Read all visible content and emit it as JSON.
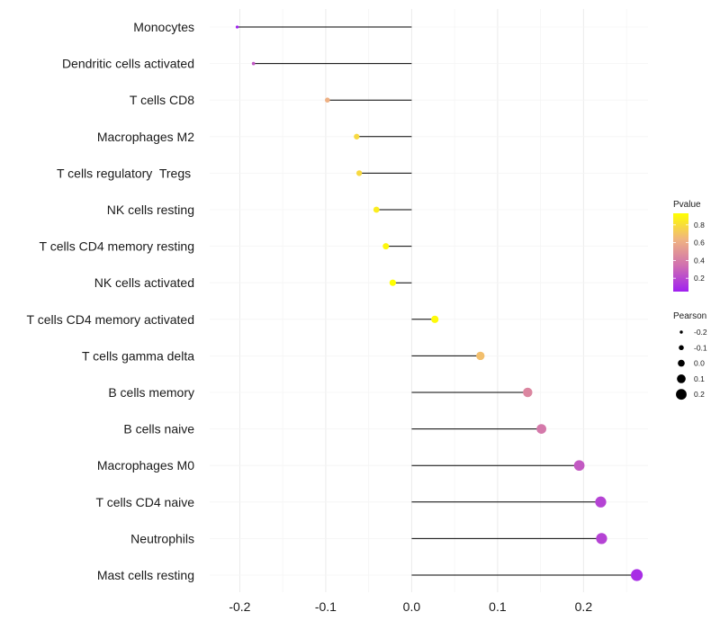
{
  "chart_data": {
    "type": "lollipop",
    "categories": [
      "Monocytes",
      "Dendritic cells activated",
      "T cells CD8",
      "Macrophages M2",
      "T cells regulatory  Tregs ",
      "NK cells resting",
      "T cells CD4 memory resting",
      "NK cells activated",
      "T cells CD4 memory activated",
      "T cells gamma delta",
      "B cells memory",
      "B cells naive",
      "Macrophages M0",
      "T cells CD4 naive",
      "Neutrophils",
      "Mast cells resting"
    ],
    "pearson": [
      -0.203,
      -0.184,
      -0.098,
      -0.064,
      -0.061,
      -0.041,
      -0.03,
      -0.022,
      0.027,
      0.08,
      0.135,
      0.151,
      0.195,
      0.22,
      0.221,
      0.262
    ],
    "pvalue": [
      0.05,
      0.25,
      0.62,
      0.78,
      0.78,
      0.86,
      0.9,
      0.93,
      0.91,
      0.68,
      0.44,
      0.38,
      0.26,
      0.18,
      0.18,
      0.1
    ],
    "xlim": [
      -0.235,
      0.275
    ],
    "xticks": [
      -0.2,
      -0.1,
      0.0,
      0.1,
      0.2
    ],
    "xtick_labels": [
      "-0.2",
      "-0.1",
      "0.0",
      "0.1",
      "0.2"
    ],
    "xlabel": "",
    "ylabel": "",
    "grid": true,
    "legend_position": "right",
    "color_legend": {
      "title": "Pvalue",
      "ticks": [
        0.8,
        0.6,
        0.4,
        0.2
      ],
      "tick_labels": [
        "0.8",
        "0.6",
        "0.4",
        "0.2"
      ],
      "range": [
        0.05,
        0.93
      ],
      "colors": [
        "#a020f0",
        "#d070b0",
        "#f0b480",
        "#ffff00"
      ]
    },
    "size_legend": {
      "title": "Pearson",
      "values": [
        -0.2,
        -0.1,
        0.0,
        0.1,
        0.2
      ],
      "labels": [
        "-0.2",
        "-0.1",
        "0.0",
        "0.1",
        "0.2"
      ]
    }
  }
}
